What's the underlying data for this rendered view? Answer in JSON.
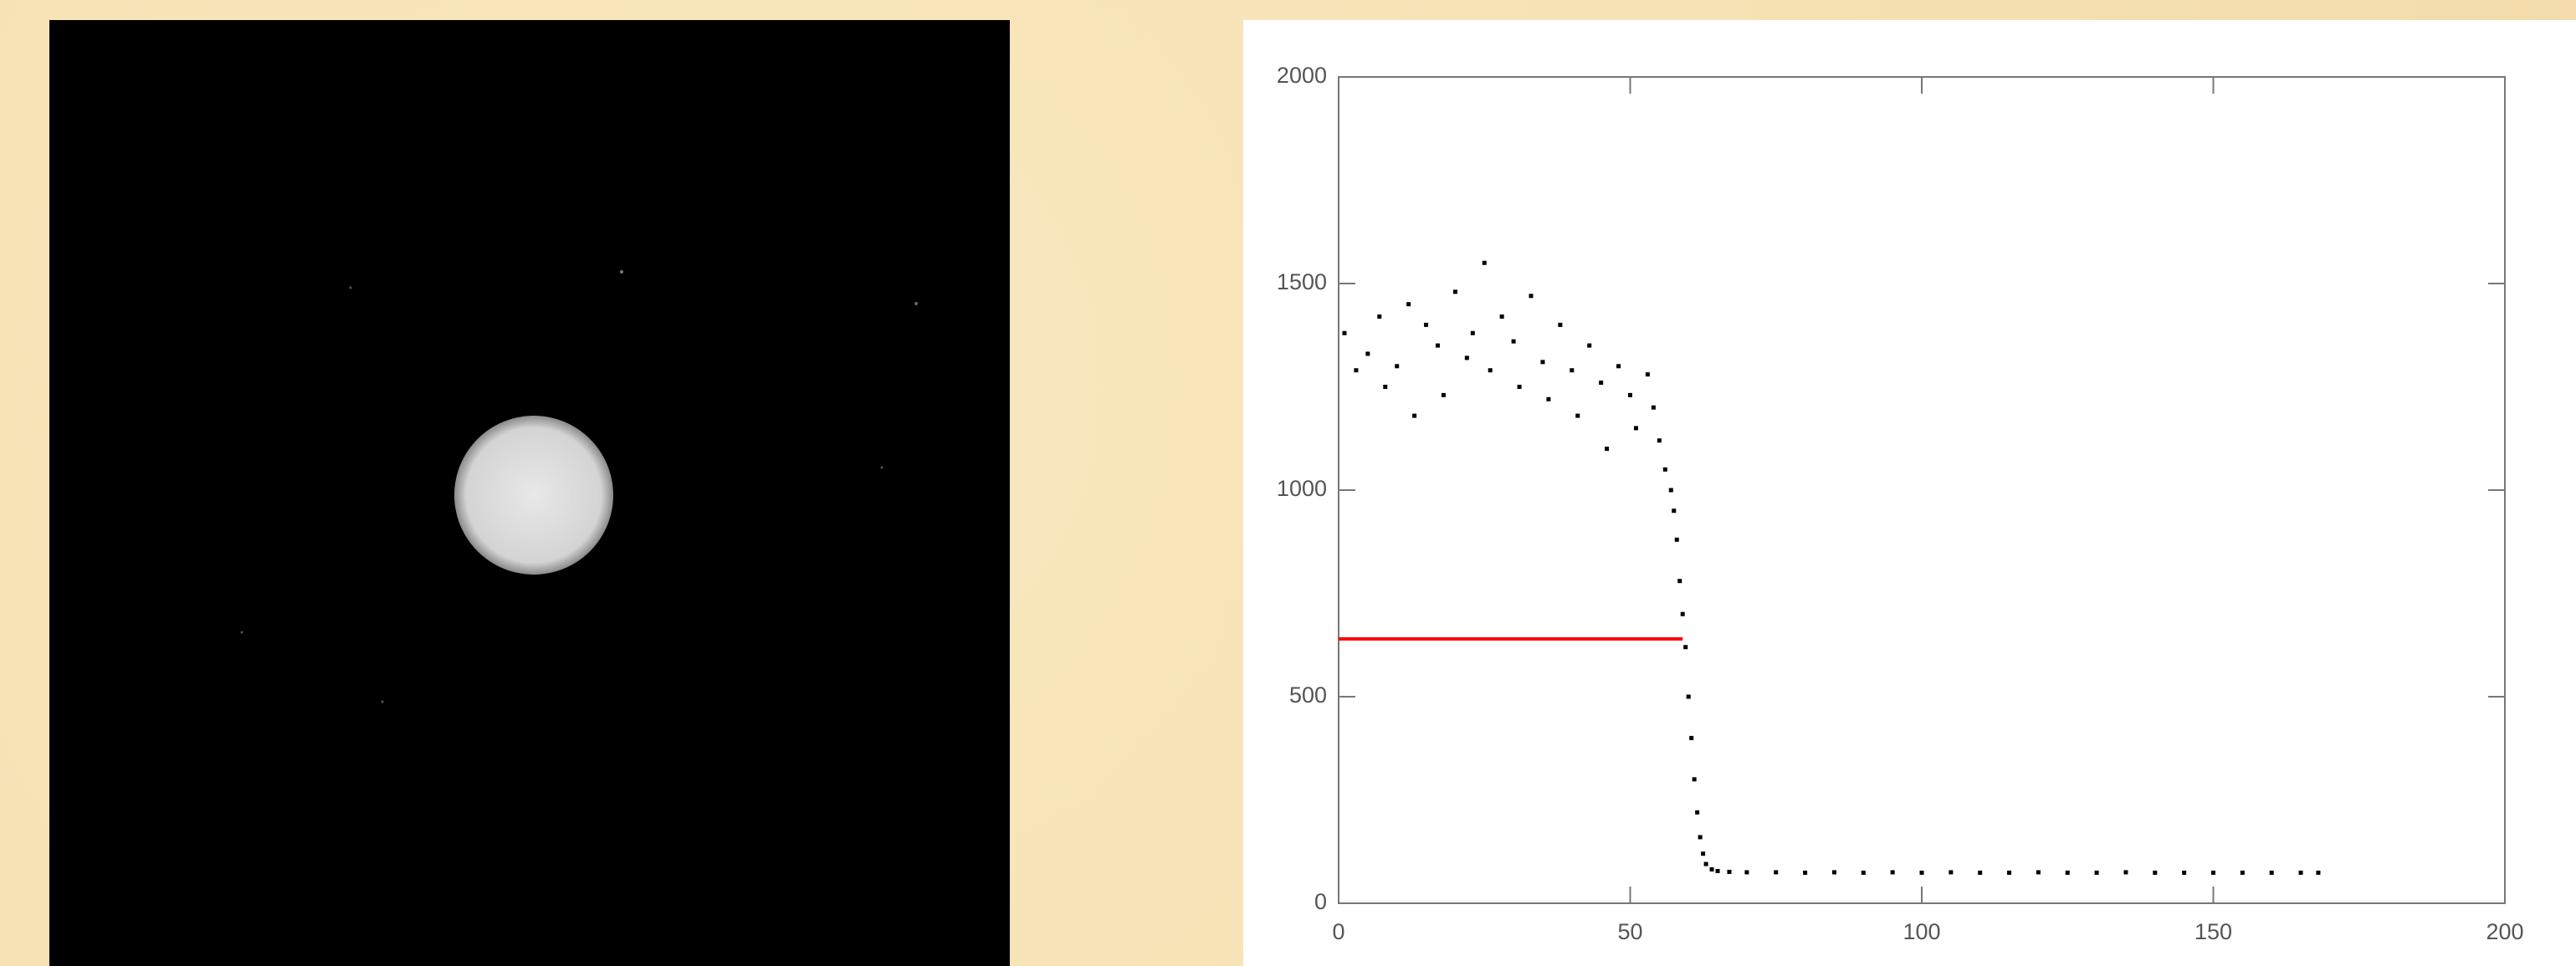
{
  "chart_data": {
    "type": "scatter",
    "xlim": [
      0,
      200
    ],
    "ylim": [
      0,
      2000
    ],
    "xticks": [
      0,
      50,
      100,
      150,
      200
    ],
    "yticks": [
      0,
      500,
      1000,
      1500,
      2000
    ],
    "series": [
      {
        "color": "#000000",
        "x": [
          1,
          3,
          5,
          7,
          8,
          10,
          12,
          13,
          15,
          17,
          18,
          20,
          22,
          23,
          25,
          26,
          28,
          30,
          31,
          33,
          35,
          36,
          38,
          40,
          41,
          43,
          45,
          46,
          48,
          50,
          51,
          53,
          54,
          55,
          56,
          57,
          57.5,
          58,
          58.5,
          59,
          59.5,
          60,
          60.5,
          61,
          61.5,
          62,
          62.5,
          63,
          64,
          65,
          67,
          70,
          75,
          80,
          85,
          90,
          95,
          100,
          105,
          110,
          115,
          120,
          125,
          130,
          135,
          140,
          145,
          150,
          155,
          160,
          165,
          168
        ],
        "values": [
          1380,
          1290,
          1330,
          1420,
          1250,
          1300,
          1450,
          1180,
          1400,
          1350,
          1230,
          1480,
          1320,
          1380,
          1550,
          1290,
          1420,
          1360,
          1250,
          1470,
          1310,
          1220,
          1400,
          1290,
          1180,
          1350,
          1260,
          1100,
          1300,
          1230,
          1150,
          1280,
          1200,
          1120,
          1050,
          1000,
          950,
          880,
          780,
          700,
          620,
          500,
          400,
          300,
          220,
          160,
          120,
          95,
          82,
          78,
          76,
          75,
          75,
          74,
          75,
          74,
          75,
          74,
          75,
          74,
          74,
          75,
          74,
          74,
          75,
          74,
          74,
          74,
          74,
          74,
          74,
          74
        ]
      }
    ],
    "hline": {
      "value": 640,
      "xmin": 0,
      "xmax": 59,
      "color": "#ff0000"
    }
  }
}
